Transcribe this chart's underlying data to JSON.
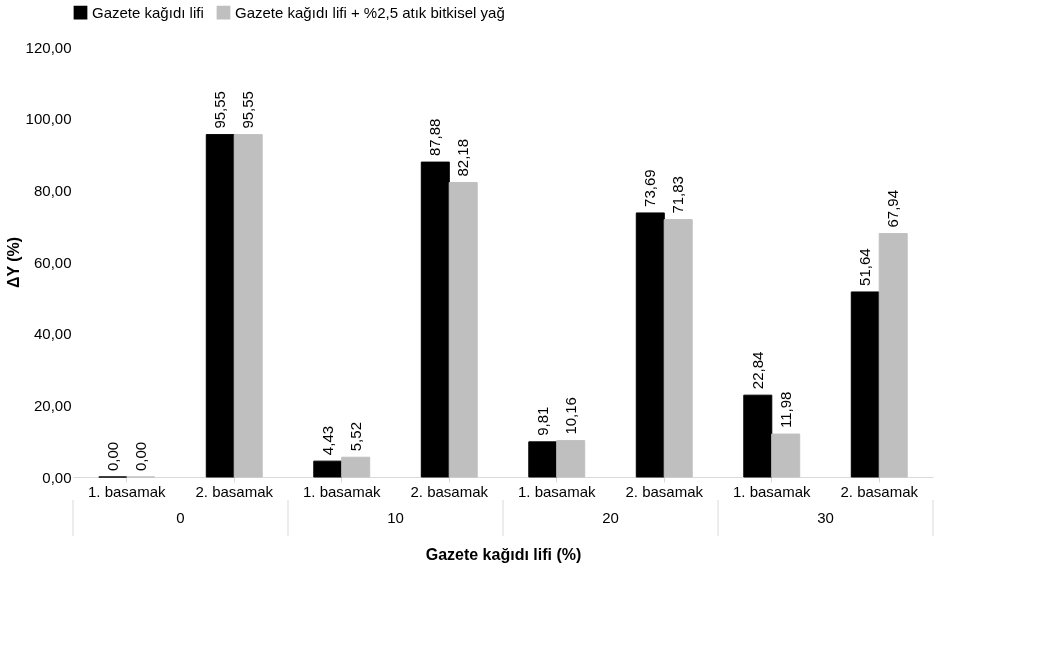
{
  "chart_data": {
    "type": "bar",
    "xlabel": "Gazete kağıdı lifi (%)",
    "ylabel": "ΔY (%)",
    "categories": [
      "1. basamak",
      "2. basamak",
      "1. basamak",
      "2. basamak",
      "1. basamak",
      "2. basamak",
      "1. basamak",
      "2. basamak"
    ],
    "series": [
      {
        "name": "Gazete kağıdı lifi",
        "color": "#000000",
        "values": [
          0,
          95.55,
          4.43,
          87.88,
          9.81,
          73.69,
          22.84,
          51.64
        ],
        "value_labels": [
          "0,00",
          "95,55",
          "4,43",
          "87,88",
          "9,81",
          "73,69",
          "22,84",
          "51,64"
        ]
      },
      {
        "name": "Gazete kağıdı lifi + %2,5 atık bitkisel yağ",
        "color": "#bfbfbf",
        "values": [
          0,
          95.55,
          5.52,
          82.18,
          10.16,
          71.83,
          11.98,
          67.94
        ],
        "value_labels": [
          "0,00",
          "95,55",
          "5,52",
          "82,18",
          "10,16",
          "71,83",
          "11,98",
          "67,94"
        ]
      }
    ],
    "ylim": [
      0,
      120
    ],
    "yticks": [
      {
        "value": 0,
        "label": "0,00"
      },
      {
        "value": 20,
        "label": "20,00"
      },
      {
        "value": 40,
        "label": "40,00"
      },
      {
        "value": 60,
        "label": "60,00"
      },
      {
        "value": 80,
        "label": "80,00"
      },
      {
        "value": 100,
        "label": "100,00"
      },
      {
        "value": 120,
        "label": "120,00"
      }
    ],
    "annotations": [
      "0",
      "10",
      "20",
      "30"
    ],
    "grid": false,
    "legend": "top"
  }
}
